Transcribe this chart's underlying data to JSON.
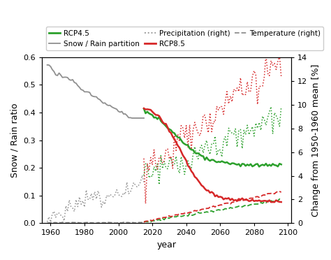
{
  "xlabel": "year",
  "ylabel_left": "Snow / Rain ratio",
  "ylabel_right": "Change from 1950-1960 mean [%]",
  "xlim": [
    1955,
    2102
  ],
  "ylim_left": [
    0.0,
    0.6
  ],
  "ylim_right": [
    0,
    14
  ],
  "xticks": [
    1960,
    1980,
    2000,
    2020,
    2040,
    2060,
    2080,
    2100
  ],
  "yticks_left": [
    0.0,
    0.1,
    0.2,
    0.3,
    0.4,
    0.5,
    0.6
  ],
  "yticks_right": [
    0,
    2,
    4,
    6,
    8,
    10,
    12,
    14
  ],
  "background_color": "#ffffff",
  "color_green": "#2ca02c",
  "color_red": "#d62728",
  "color_gray": "#909090"
}
